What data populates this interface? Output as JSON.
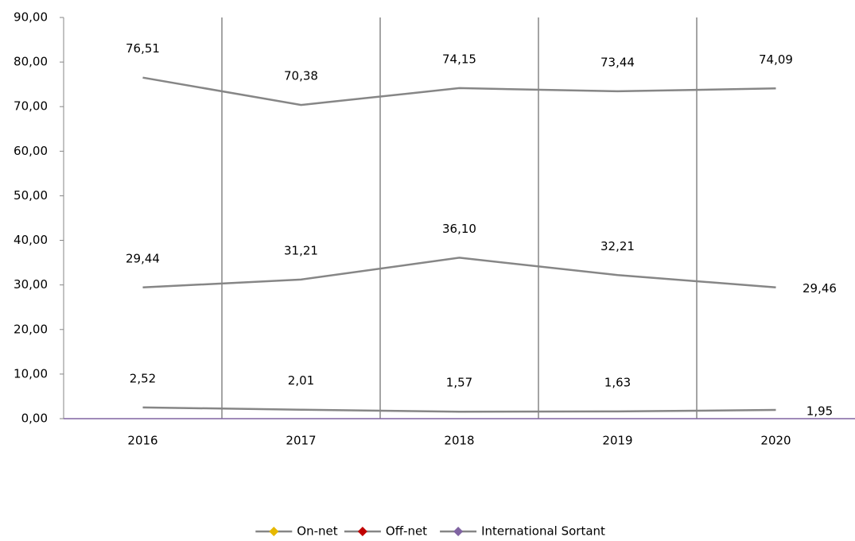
{
  "chart_data": {
    "type": "line",
    "categories": [
      "2016",
      "2017",
      "2018",
      "2019",
      "2020"
    ],
    "series": [
      {
        "name": "On-net",
        "color": "#868686",
        "marker_color": "#e6b800",
        "values": [
          76.51,
          70.38,
          74.15,
          73.44,
          74.09
        ],
        "value_labels": [
          "76,51",
          "70,38",
          "74,15",
          "73,44",
          "74,09"
        ]
      },
      {
        "name": "Off-net",
        "color": "#868686",
        "marker_color": "#c00000",
        "values": [
          29.44,
          31.21,
          36.1,
          32.21,
          29.46
        ],
        "value_labels": [
          "29,44",
          "31,21",
          "36,10",
          "32,21",
          "29,46"
        ]
      },
      {
        "name": "International Sortant",
        "color": "#868686",
        "marker_color": "#8064a2",
        "values": [
          2.52,
          2.01,
          1.57,
          1.63,
          1.95
        ],
        "value_labels": [
          "2,52",
          "2,01",
          "1,57",
          "1,63",
          "1,95"
        ]
      }
    ],
    "ylim": [
      0,
      90
    ],
    "yticks": [
      {
        "value": 0,
        "label": "0,00"
      },
      {
        "value": 10,
        "label": "10,00"
      },
      {
        "value": 20,
        "label": "20,00"
      },
      {
        "value": 30,
        "label": "30,00"
      },
      {
        "value": 40,
        "label": "40,00"
      },
      {
        "value": 50,
        "label": "50,00"
      },
      {
        "value": 60,
        "label": "60,00"
      },
      {
        "value": 70,
        "label": "70,00"
      },
      {
        "value": 80,
        "label": "80,00"
      },
      {
        "value": 90,
        "label": "90,00"
      }
    ],
    "legend": "bottom"
  }
}
